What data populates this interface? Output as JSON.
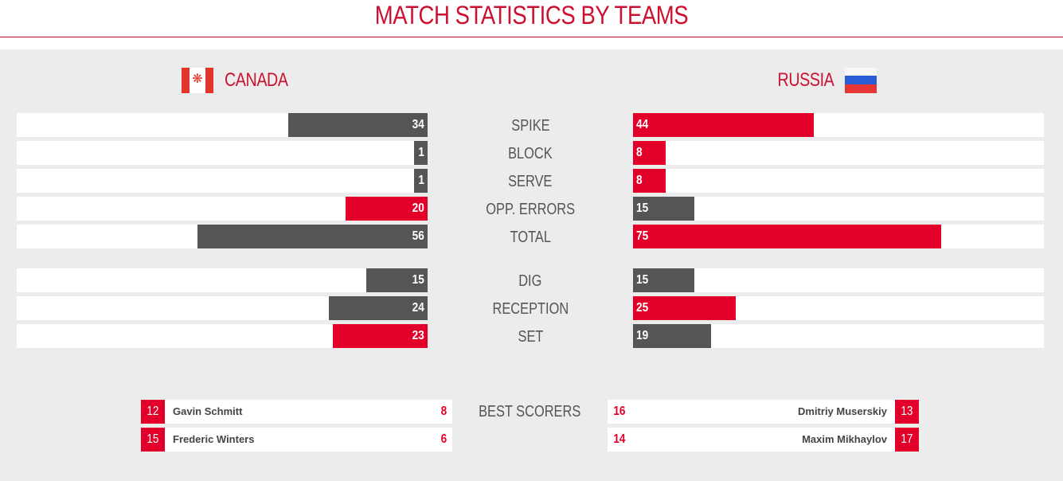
{
  "header": {
    "title": "MATCH STATISTICS BY TEAMS"
  },
  "teams": {
    "home": {
      "name": "CANADA",
      "flag_icon": "canada-flag-icon"
    },
    "away": {
      "name": "RUSSIA",
      "flag_icon": "russia-flag-icon"
    }
  },
  "colors": {
    "accent": "#e2002b",
    "title": "#cc1030",
    "dark_bar": "#555555",
    "panel": "#ececec"
  },
  "stats": [
    {
      "label": "SPIKE",
      "home": "34",
      "away": "44",
      "home_color": "dark",
      "away_color": "red"
    },
    {
      "label": "BLOCK",
      "home": "1",
      "away": "8",
      "home_color": "dark",
      "away_color": "red"
    },
    {
      "label": "SERVE",
      "home": "1",
      "away": "8",
      "home_color": "dark",
      "away_color": "red"
    },
    {
      "label": "OPP. ERRORS",
      "home": "20",
      "away": "15",
      "home_color": "red",
      "away_color": "dark"
    },
    {
      "label": "TOTAL",
      "home": "56",
      "away": "75",
      "home_color": "dark",
      "away_color": "red"
    },
    {
      "label": "DIG",
      "home": "15",
      "away": "15",
      "home_color": "dark",
      "away_color": "dark"
    },
    {
      "label": "RECEPTION",
      "home": "24",
      "away": "25",
      "home_color": "dark",
      "away_color": "red"
    },
    {
      "label": "SET",
      "home": "23",
      "away": "19",
      "home_color": "red",
      "away_color": "dark"
    }
  ],
  "best_scorers": {
    "label": "BEST SCORERS",
    "home": [
      {
        "number": "12",
        "name": "Gavin Schmitt",
        "points": "8"
      },
      {
        "number": "15",
        "name": "Frederic Winters",
        "points": "6"
      }
    ],
    "away": [
      {
        "number": "13",
        "name": "Dmitriy Muserskiy",
        "points": "16"
      },
      {
        "number": "17",
        "name": "Maxim Mikhaylov",
        "points": "14"
      }
    ]
  }
}
